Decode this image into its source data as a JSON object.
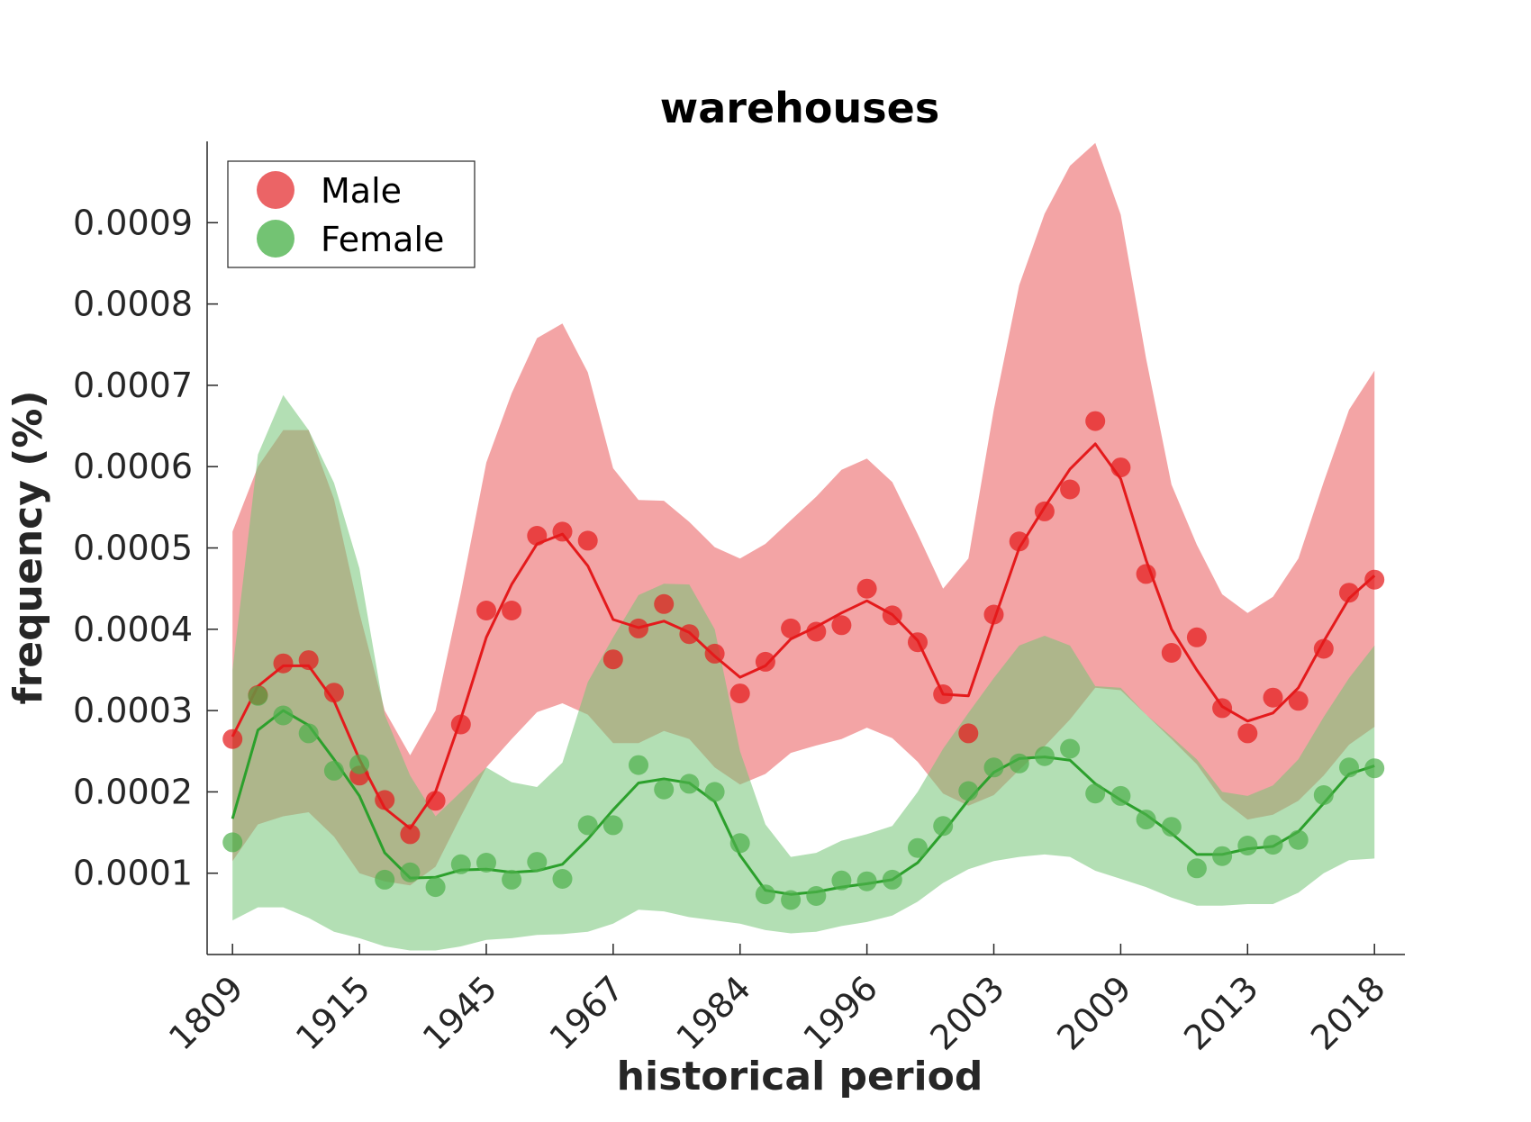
{
  "chart_data": {
    "type": "line",
    "title": "warehouses",
    "xlabel": "historical period",
    "ylabel": "frequency (%)",
    "x_tick_labels": [
      "1809",
      "1915",
      "1945",
      "1967",
      "1984",
      "1996",
      "2003",
      "2009",
      "2013",
      "2018"
    ],
    "x_tick_index": [
      0,
      5,
      10,
      15,
      20,
      25,
      30,
      35,
      40,
      45
    ],
    "y_ticks": [
      0.0001,
      0.0002,
      0.0003,
      0.0004,
      0.0005,
      0.0006,
      0.0007,
      0.0008,
      0.0009
    ],
    "y_tick_labels": [
      "0.0001",
      "0.0002",
      "0.0003",
      "0.0004",
      "0.0005",
      "0.0006",
      "0.0007",
      "0.0008",
      "0.0009"
    ],
    "ylim": [
      0.0,
      0.001
    ],
    "xlim": [
      -1,
      46.2
    ],
    "grid": false,
    "legend_position": "top-left",
    "series": [
      {
        "name": "Male",
        "color": "#e41a1c",
        "marker_color": "#e41a1c",
        "band_color": "#e8494b",
        "points": [
          0.000265,
          0.000319,
          0.000358,
          0.000362,
          0.000322,
          0.00022,
          0.00019,
          0.000148,
          0.000189,
          0.000283,
          0.000423,
          0.000423,
          0.000515,
          0.00052,
          0.000509,
          0.000363,
          0.000401,
          0.000431,
          0.000394,
          0.00037,
          0.000321,
          0.00036,
          0.000401,
          0.000397,
          0.000405,
          0.00045,
          0.000417,
          0.000384,
          0.00032,
          0.000272,
          0.000418,
          0.000508,
          0.000545,
          0.000572,
          0.000656,
          0.000599,
          0.000468,
          0.000371,
          0.00039,
          0.000303,
          0.000272,
          0.000316,
          0.000312,
          0.000376,
          0.000445,
          0.000461
        ],
        "line": [
          0.000268,
          0.00033,
          0.000355,
          0.000355,
          0.000312,
          0.00024,
          0.00018,
          0.000155,
          0.0002,
          0.00029,
          0.00039,
          0.000455,
          0.000505,
          0.000517,
          0.000478,
          0.000412,
          0.000402,
          0.00041,
          0.000396,
          0.000367,
          0.000341,
          0.000355,
          0.000388,
          0.000403,
          0.00042,
          0.000435,
          0.000418,
          0.000386,
          0.00032,
          0.000318,
          0.00041,
          0.0005,
          0.00055,
          0.000597,
          0.000628,
          0.000585,
          0.000485,
          0.0004,
          0.00035,
          0.000305,
          0.000287,
          0.000297,
          0.000328,
          0.000385,
          0.000438,
          0.000466
        ],
        "band_upper": [
          0.00052,
          0.0006,
          0.000645,
          0.000645,
          0.00056,
          0.00042,
          0.0003,
          0.000245,
          0.0003,
          0.000445,
          0.000605,
          0.00069,
          0.000758,
          0.000776,
          0.000716,
          0.000598,
          0.000559,
          0.000558,
          0.000532,
          0.000501,
          0.000487,
          0.000505,
          0.000534,
          0.000563,
          0.000596,
          0.00061,
          0.000581,
          0.000517,
          0.00045,
          0.000487,
          0.00067,
          0.000823,
          0.000911,
          0.00097,
          0.000998,
          0.00091,
          0.000733,
          0.000578,
          0.000504,
          0.000443,
          0.00042,
          0.00044,
          0.000487,
          0.000581,
          0.00067,
          0.000718
        ],
        "band_lower": [
          0.000115,
          0.00016,
          0.00017,
          0.000175,
          0.000145,
          0.0001,
          9e-05,
          8.5e-05,
          0.000108,
          0.00017,
          0.00023,
          0.000265,
          0.000298,
          0.000309,
          0.000295,
          0.00026,
          0.00026,
          0.000275,
          0.000265,
          0.00023,
          0.000209,
          0.000222,
          0.000248,
          0.000257,
          0.000265,
          0.000279,
          0.000266,
          0.000237,
          0.000198,
          0.000183,
          0.000196,
          0.000227,
          0.000256,
          0.000289,
          0.000328,
          0.000325,
          0.000295,
          0.000265,
          0.000234,
          0.00019,
          0.000166,
          0.000172,
          0.000189,
          0.00022,
          0.000258,
          0.00028
        ]
      },
      {
        "name": "Female",
        "color": "#2ca02c",
        "marker_color": "#4daf4a",
        "band_color": "#74c476",
        "points": [
          0.000138,
          0.000318,
          0.000294,
          0.000272,
          0.000226,
          0.000234,
          9.2e-05,
          0.000101,
          8.3e-05,
          0.000111,
          0.000113,
          9.2e-05,
          0.000114,
          9.3e-05,
          0.000159,
          0.000159,
          0.000233,
          0.000203,
          0.00021,
          0.0002,
          0.000137,
          7.4e-05,
          6.7e-05,
          7.2e-05,
          9.1e-05,
          9e-05,
          9.2e-05,
          0.000131,
          0.000158,
          0.000201,
          0.00023,
          0.000235,
          0.000244,
          0.000253,
          0.000198,
          0.000195,
          0.000166,
          0.000157,
          0.000106,
          0.000121,
          0.000134,
          0.000135,
          0.000141,
          0.000196,
          0.00023,
          0.000229
        ],
        "line": [
          0.000167,
          0.000276,
          0.0003,
          0.000282,
          0.00024,
          0.000195,
          0.000125,
          9.4e-05,
          9.5e-05,
          0.000104,
          0.000105,
          0.000101,
          0.000103,
          0.000111,
          0.000142,
          0.000178,
          0.000211,
          0.000216,
          0.000211,
          0.000188,
          0.000122,
          7.9e-05,
          7.4e-05,
          7.7e-05,
          8.3e-05,
          8.7e-05,
          9.2e-05,
          0.000113,
          0.00015,
          0.00019,
          0.000224,
          0.000241,
          0.000243,
          0.000239,
          0.00021,
          0.00019,
          0.000172,
          0.000149,
          0.000123,
          0.000123,
          0.00013,
          0.000133,
          0.000151,
          0.000186,
          0.000222,
          0.000232
        ],
        "band_upper": [
          0.00035,
          0.000615,
          0.000688,
          0.000645,
          0.00058,
          0.000475,
          0.000295,
          0.00022,
          0.00017,
          0.0002,
          0.00023,
          0.000212,
          0.000206,
          0.000236,
          0.000335,
          0.00039,
          0.000442,
          0.000456,
          0.000455,
          0.0004,
          0.00025,
          0.00016,
          0.00012,
          0.000125,
          0.00014,
          0.000148,
          0.000158,
          0.0002,
          0.000253,
          0.000297,
          0.00034,
          0.00038,
          0.000392,
          0.00038,
          0.00033,
          0.000328,
          0.000295,
          0.000268,
          0.00024,
          0.0002,
          0.000195,
          0.000208,
          0.00024,
          0.000292,
          0.00034,
          0.00038
        ],
        "band_lower": [
          4.2e-05,
          5.8e-05,
          5.8e-05,
          4.5e-05,
          2.8e-05,
          2e-05,
          1e-05,
          5e-06,
          5e-06,
          1e-05,
          1.8e-05,
          2e-05,
          2.4e-05,
          2.5e-05,
          2.8e-05,
          3.8e-05,
          5.5e-05,
          5.3e-05,
          4.6e-05,
          4.2e-05,
          3.8e-05,
          3e-05,
          2.6e-05,
          2.8e-05,
          3.5e-05,
          4e-05,
          4.8e-05,
          6.5e-05,
          8.8e-05,
          0.000105,
          0.000115,
          0.00012,
          0.000123,
          0.00012,
          0.000103,
          9.3e-05,
          8.3e-05,
          7e-05,
          6e-05,
          6e-05,
          6.2e-05,
          6.2e-05,
          7.6e-05,
          0.0001,
          0.000116,
          0.000118
        ]
      }
    ],
    "legend": [
      {
        "label": "Male",
        "color": "#e8494b"
      },
      {
        "label": "Female",
        "color": "#5bb85b"
      }
    ]
  }
}
